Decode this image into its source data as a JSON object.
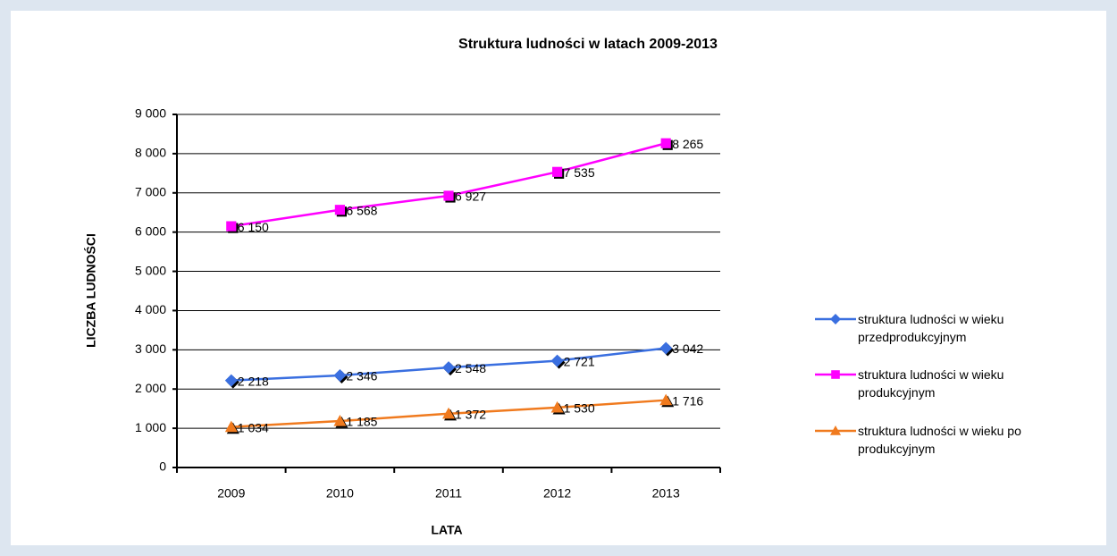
{
  "chart_data": {
    "type": "line",
    "title": "Struktura ludności w latach 2009-2013",
    "x_label": "LATA",
    "y_label": "LICZBA LUDNOŚCI",
    "categories": [
      "2009",
      "2010",
      "2011",
      "2012",
      "2013"
    ],
    "ylim": [
      0,
      9000
    ],
    "yticks": [
      0,
      {
        "value": 1000,
        "label": "1 000"
      },
      {
        "value": 2000,
        "label": "2 000"
      },
      {
        "value": 3000,
        "label": "3 000"
      },
      {
        "value": 4000,
        "label": "4 000"
      },
      {
        "value": 5000,
        "label": "5 000"
      },
      {
        "value": 6000,
        "label": "6 000"
      },
      {
        "value": 7000,
        "label": "7 000"
      },
      {
        "value": 8000,
        "label": "8 000"
      },
      {
        "value": 9000,
        "label": "9 000"
      }
    ],
    "grid": true,
    "legend": "right",
    "series": [
      {
        "name": "struktura ludności w wieku przedprodukcyjnym",
        "color": "#3a6fe0",
        "marker": "diamond",
        "values": [
          2218,
          2346,
          2548,
          2721,
          3042
        ],
        "value_labels": [
          "2 218",
          "2 346",
          "2 548",
          "2 721",
          "3 042"
        ]
      },
      {
        "name": "struktura ludności w wieku produkcyjnym",
        "color": "#ff00ff",
        "marker": "square",
        "values": [
          6150,
          6568,
          6927,
          7535,
          8265
        ],
        "value_labels": [
          "6 150",
          "6 568",
          "6 927",
          "7 535",
          "8 265"
        ]
      },
      {
        "name": "struktura ludności w wieku po produkcyjnym",
        "color": "#f07a1e",
        "marker": "triangle",
        "values": [
          1034,
          1185,
          1372,
          1530,
          1716
        ],
        "value_labels": [
          "1 034",
          "1 185",
          "1 372",
          "1 530",
          "1 716"
        ]
      }
    ]
  }
}
